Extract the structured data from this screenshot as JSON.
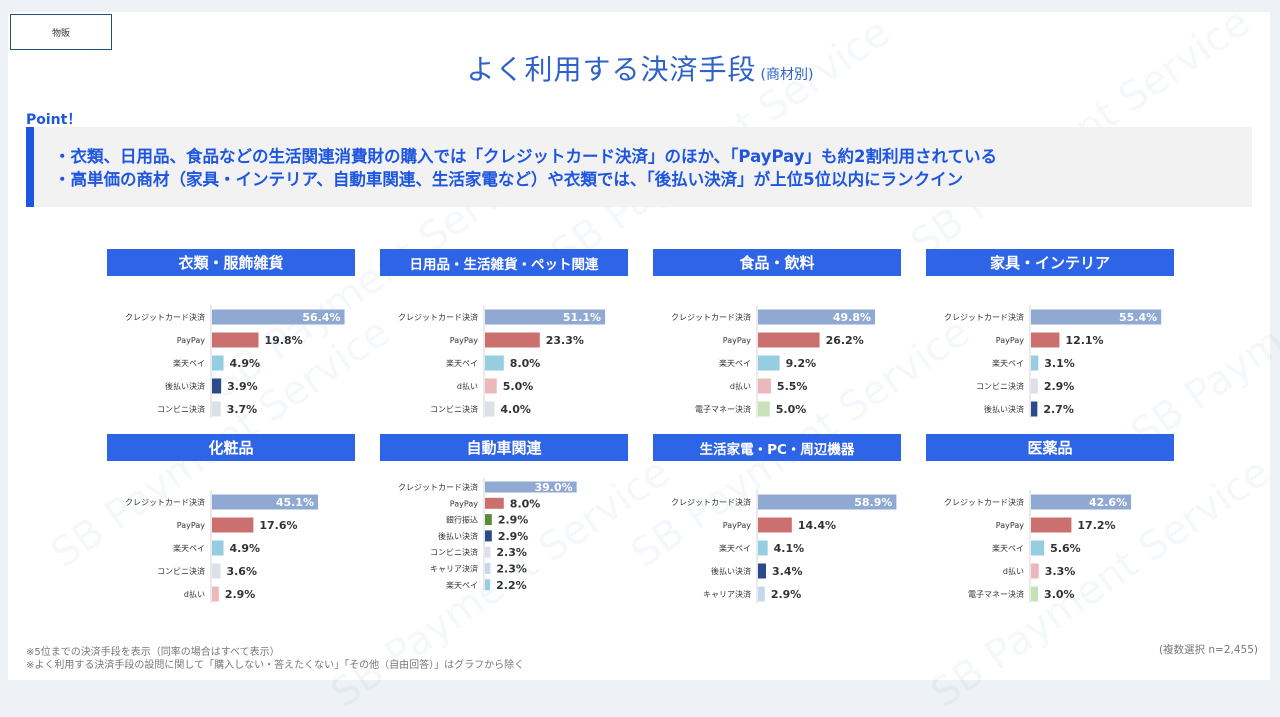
{
  "tag": "物販",
  "title": "よく利用する決済手段",
  "title_sub": "(商材別)",
  "point_label": "Point！",
  "points": [
    "・衣類、日用品、食品などの生活関連消費財の購入では「クレジットカード決済」のほか、「PayPay」も約2割利用されている",
    "・高単価の商材（家具・インテリア、自動車関連、生活家電など）や衣類では、「後払い決済」が上位5位以内にランクイン"
  ],
  "footnotes": [
    "※5位までの決済手段を表示（同率の場合はすべて表示）",
    "※よく利用する決済手段の設問に関して「購入しない・答えたくない」「その他（自由回答）」はグラフから除く"
  ],
  "sample_note": "(複数選択 n=2,455)",
  "watermark": "SB Payment Service",
  "colors": {
    "クレジットカード決済": "#8fa9d3",
    "PayPay": "#cc6f6f",
    "楽天ペイ": "#96cde0",
    "後払い決済": "#2b4a8a",
    "コンビニ決済": "#dde0e6",
    "d払い": "#ebb9bb",
    "電子マネー決済": "#c7e2b8",
    "銀行振込": "#5a8a3a",
    "キャリア決済": "#c8d8ec"
  },
  "chart_data": [
    {
      "type": "bar",
      "title": "衣類・服飾雑貨",
      "categories": [
        "クレジットカード決済",
        "PayPay",
        "楽天ペイ",
        "後払い決済",
        "コンビニ決済"
      ],
      "values": [
        56.4,
        19.8,
        4.9,
        3.9,
        3.7
      ],
      "labels": [
        "56.4%",
        "19.8%",
        "4.9%",
        "3.9%",
        "3.7%"
      ]
    },
    {
      "type": "bar",
      "title": "日用品・生活雑貨・ペット関連",
      "categories": [
        "クレジットカード決済",
        "PayPay",
        "楽天ペイ",
        "d払い",
        "コンビニ決済"
      ],
      "values": [
        51.1,
        23.3,
        8.0,
        5.0,
        4.0
      ],
      "labels": [
        "51.1%",
        "23.3%",
        "8.0%",
        "5.0%",
        "4.0%"
      ]
    },
    {
      "type": "bar",
      "title": "食品・飲料",
      "categories": [
        "クレジットカード決済",
        "PayPay",
        "楽天ペイ",
        "d払い",
        "電子マネー決済"
      ],
      "values": [
        49.8,
        26.2,
        9.2,
        5.5,
        5.0
      ],
      "labels": [
        "49.8%",
        "26.2%",
        "9.2%",
        "5.5%",
        "5.0%"
      ]
    },
    {
      "type": "bar",
      "title": "家具・インテリア",
      "categories": [
        "クレジットカード決済",
        "PayPay",
        "楽天ペイ",
        "コンビニ決済",
        "後払い決済"
      ],
      "values": [
        55.4,
        12.1,
        3.1,
        2.9,
        2.7
      ],
      "labels": [
        "55.4%",
        "12.1%",
        "3.1%",
        "2.9%",
        "2.7%"
      ]
    },
    {
      "type": "bar",
      "title": "化粧品",
      "categories": [
        "クレジットカード決済",
        "PayPay",
        "楽天ペイ",
        "コンビニ決済",
        "d払い"
      ],
      "values": [
        45.1,
        17.6,
        4.9,
        3.6,
        2.9
      ],
      "labels": [
        "45.1%",
        "17.6%",
        "4.9%",
        "3.6%",
        "2.9%"
      ]
    },
    {
      "type": "bar",
      "title": "自動車関連",
      "categories": [
        "クレジットカード決済",
        "PayPay",
        "銀行振込",
        "後払い決済",
        "コンビニ決済",
        "キャリア決済",
        "楽天ペイ"
      ],
      "values": [
        39.0,
        8.0,
        2.9,
        2.9,
        2.3,
        2.3,
        2.2
      ],
      "labels": [
        "39.0%",
        "8.0%",
        "2.9%",
        "2.9%",
        "2.3%",
        "2.3%",
        "2.2%"
      ]
    },
    {
      "type": "bar",
      "title": "生活家電・PC・周辺機器",
      "categories": [
        "クレジットカード決済",
        "PayPay",
        "楽天ペイ",
        "後払い決済",
        "キャリア決済"
      ],
      "values": [
        58.9,
        14.4,
        4.1,
        3.4,
        2.9
      ],
      "labels": [
        "58.9%",
        "14.4%",
        "4.1%",
        "3.4%",
        "2.9%"
      ]
    },
    {
      "type": "bar",
      "title": "医薬品",
      "categories": [
        "クレジットカード決済",
        "PayPay",
        "楽天ペイ",
        "d払い",
        "電子マネー決済"
      ],
      "values": [
        42.6,
        17.2,
        5.6,
        3.3,
        3.0
      ],
      "labels": [
        "42.6%",
        "17.2%",
        "5.6%",
        "3.3%",
        "3.0%"
      ]
    }
  ]
}
